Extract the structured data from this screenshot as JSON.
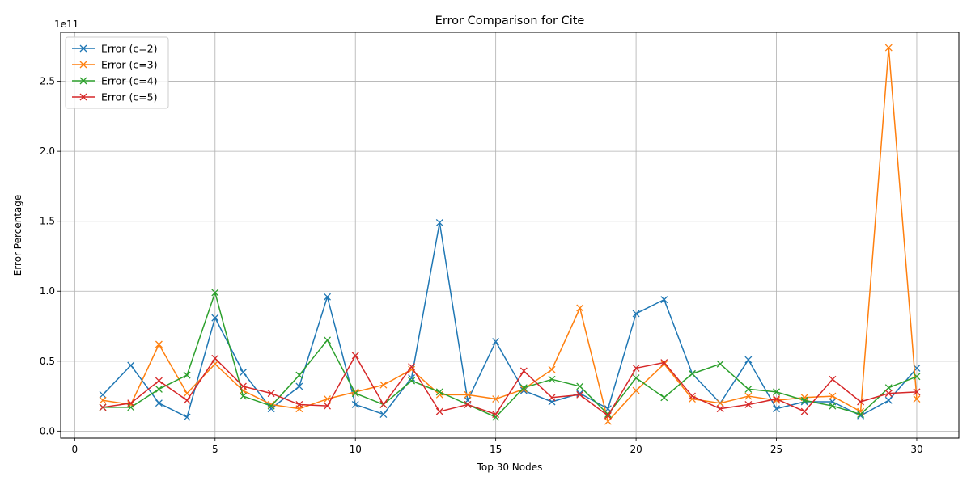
{
  "chart_data": {
    "type": "line",
    "title": "Error Comparison for Cite",
    "xlabel": "Top 30 Nodes",
    "ylabel": "Error Percentage",
    "y_scale_factor": "1e11",
    "xlim": [
      -0.5,
      31.5
    ],
    "ylim": [
      -0.05,
      2.85
    ],
    "x_ticks": [
      0,
      5,
      10,
      15,
      20,
      25,
      30
    ],
    "y_ticks": [
      0.0,
      0.5,
      1.0,
      1.5,
      2.0,
      2.5
    ],
    "y_tick_labels": [
      "0.0",
      "0.5",
      "1.0",
      "1.5",
      "2.0",
      "2.5"
    ],
    "grid": true,
    "legend_position": "top-left",
    "marker": "x",
    "x": [
      1,
      2,
      3,
      4,
      5,
      6,
      7,
      8,
      9,
      10,
      11,
      12,
      13,
      14,
      15,
      16,
      17,
      18,
      19,
      20,
      21,
      22,
      23,
      24,
      25,
      26,
      27,
      28,
      29,
      30
    ],
    "series": [
      {
        "name": "Error (c=2)",
        "color": "#1f77b4",
        "values": [
          0.26,
          0.47,
          0.2,
          0.1,
          0.81,
          0.42,
          0.16,
          0.32,
          0.96,
          0.19,
          0.12,
          0.38,
          1.49,
          0.22,
          0.64,
          0.29,
          0.21,
          0.27,
          0.16,
          0.84,
          0.94,
          0.41,
          0.2,
          0.51,
          0.16,
          0.21,
          0.21,
          0.11,
          0.22,
          0.45
        ]
      },
      {
        "name": "Error (c=3)",
        "color": "#ff7f0e",
        "values": [
          0.22,
          0.19,
          0.62,
          0.27,
          0.48,
          0.29,
          0.19,
          0.16,
          0.23,
          0.28,
          0.33,
          0.44,
          0.26,
          0.26,
          0.23,
          0.3,
          0.44,
          0.88,
          0.07,
          0.29,
          0.48,
          0.23,
          0.2,
          0.25,
          0.22,
          0.24,
          0.25,
          0.14,
          2.74,
          0.23
        ]
      },
      {
        "name": "Error (c=4)",
        "color": "#2ca02c",
        "values": [
          0.17,
          0.17,
          0.3,
          0.4,
          0.99,
          0.25,
          0.18,
          0.4,
          0.65,
          0.27,
          0.19,
          0.36,
          0.28,
          0.19,
          0.1,
          0.31,
          0.37,
          0.32,
          0.12,
          0.38,
          0.24,
          0.41,
          0.48,
          0.3,
          0.28,
          0.22,
          0.18,
          0.12,
          0.31,
          0.39
        ]
      },
      {
        "name": "Error (c=5)",
        "color": "#d62728",
        "values": [
          0.17,
          0.2,
          0.36,
          0.22,
          0.52,
          0.32,
          0.27,
          0.19,
          0.18,
          0.54,
          0.19,
          0.46,
          0.14,
          0.19,
          0.12,
          0.43,
          0.24,
          0.26,
          0.11,
          0.45,
          0.49,
          0.25,
          0.16,
          0.19,
          0.23,
          0.14,
          0.37,
          0.21,
          0.27,
          0.28
        ]
      }
    ]
  }
}
